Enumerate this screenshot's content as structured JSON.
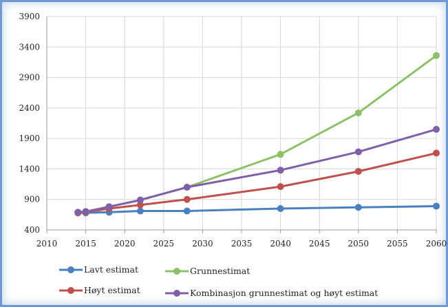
{
  "chart_data": {
    "type": "line",
    "x_ticks": [
      2010,
      2015,
      2020,
      2025,
      2030,
      2035,
      2040,
      2045,
      2050,
      2055,
      2060
    ],
    "y_ticks": [
      400,
      900,
      1400,
      1900,
      2400,
      2900,
      3400,
      3900
    ],
    "xlim": [
      2010,
      2060
    ],
    "ylim": [
      400,
      3900
    ],
    "grid": true,
    "legend_placement": "bottom",
    "series": [
      {
        "name": "Lavt estimat",
        "color": "#4a7fc1",
        "points": [
          [
            2014,
            680
          ],
          [
            2015,
            680
          ],
          [
            2018,
            690
          ],
          [
            2022,
            710
          ],
          [
            2028,
            710
          ],
          [
            2040,
            750
          ],
          [
            2050,
            770
          ],
          [
            2060,
            790
          ]
        ]
      },
      {
        "name": "Grunnestimat",
        "color": "#8cc167",
        "points": [
          [
            2014,
            690
          ],
          [
            2015,
            700
          ],
          [
            2018,
            780
          ],
          [
            2022,
            890
          ],
          [
            2028,
            1100
          ],
          [
            2040,
            1640
          ],
          [
            2050,
            2320
          ],
          [
            2060,
            3260
          ]
        ]
      },
      {
        "name": "Høyt estimat",
        "color": "#c0504d",
        "points": [
          [
            2014,
            680
          ],
          [
            2015,
            690
          ],
          [
            2018,
            750
          ],
          [
            2022,
            810
          ],
          [
            2028,
            900
          ],
          [
            2040,
            1110
          ],
          [
            2050,
            1360
          ],
          [
            2060,
            1660
          ]
        ]
      },
      {
        "name": "Kombinasjon grunnestimat og høyt estimat",
        "color": "#7e5fa8",
        "points": [
          [
            2014,
            690
          ],
          [
            2015,
            700
          ],
          [
            2018,
            780
          ],
          [
            2022,
            890
          ],
          [
            2028,
            1100
          ],
          [
            2040,
            1380
          ],
          [
            2050,
            1680
          ],
          [
            2060,
            2050
          ]
        ]
      }
    ]
  }
}
